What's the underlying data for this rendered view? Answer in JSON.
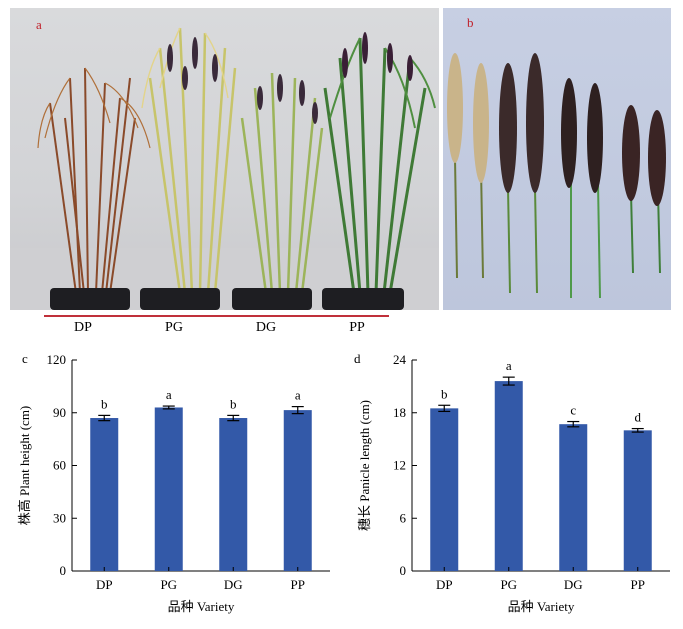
{
  "photos": {
    "a": {
      "letter": "a",
      "labels": [
        "DP",
        "PG",
        "DG",
        "PP"
      ]
    },
    "b": {
      "letter": "b"
    }
  },
  "chart_data": [
    {
      "panel": "c",
      "type": "bar",
      "categories": [
        "DP",
        "PG",
        "DG",
        "PP"
      ],
      "values": [
        87,
        93,
        87,
        91.5
      ],
      "errors": [
        1.5,
        0.8,
        1.5,
        2.0
      ],
      "significance": [
        "b",
        "a",
        "b",
        "a"
      ],
      "xlabel": "品种 Variety",
      "ylabel": "株高 Plant height (cm)",
      "ylim": [
        0,
        120
      ],
      "yticks": [
        0,
        30,
        60,
        90,
        120
      ],
      "bar_color": "#3359a8"
    },
    {
      "panel": "d",
      "type": "bar",
      "categories": [
        "DP",
        "PG",
        "DG",
        "PP"
      ],
      "values": [
        18.5,
        21.6,
        16.7,
        16.0
      ],
      "errors": [
        0.35,
        0.45,
        0.3,
        0.2
      ],
      "significance": [
        "b",
        "a",
        "c",
        "d"
      ],
      "xlabel": "品种 Variety",
      "ylabel": "穗长 Panicle length (cm)",
      "ylim": [
        0,
        24
      ],
      "yticks": [
        0,
        6,
        12,
        18,
        24
      ],
      "bar_color": "#3359a8"
    }
  ]
}
